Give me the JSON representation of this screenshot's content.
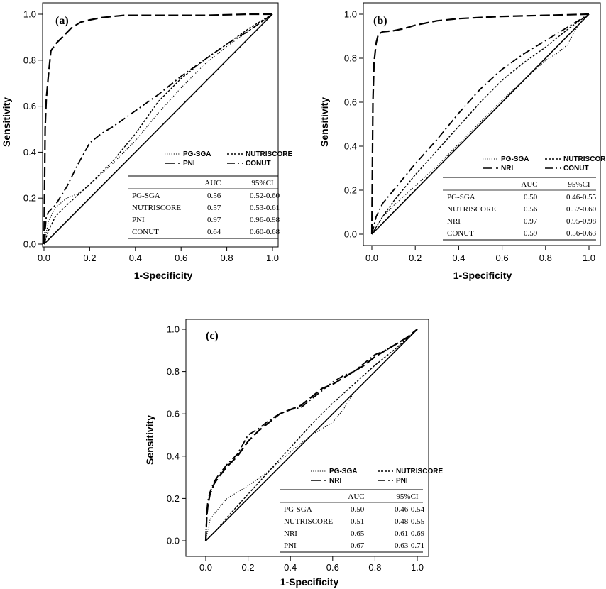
{
  "chart_data": [
    {
      "type": "line",
      "panel_label": "(a)",
      "xlabel": "1-Specificity",
      "ylabel": "Sensitivity",
      "xlim": [
        0,
        1
      ],
      "ylim": [
        0,
        1
      ],
      "xticks": [
        "0.0",
        "0.2",
        "0.4",
        "0.6",
        "0.8",
        "1.0"
      ],
      "yticks": [
        "0.0",
        "0.2",
        "0.4",
        "0.6",
        "0.8",
        "1.0"
      ],
      "grid": false,
      "legend_position": "lower-right",
      "series": [
        {
          "name": "PG-SGA",
          "style": "dotted",
          "x": [
            0,
            0.02,
            0.05,
            0.1,
            0.15,
            0.2,
            0.3,
            0.4,
            0.5,
            0.6,
            0.7,
            0.8,
            0.9,
            1.0
          ],
          "y": [
            0,
            0.1,
            0.16,
            0.2,
            0.22,
            0.26,
            0.35,
            0.45,
            0.57,
            0.68,
            0.78,
            0.86,
            0.93,
            1.0
          ]
        },
        {
          "name": "NUTRISCORE",
          "style": "short-dash",
          "x": [
            0,
            0.02,
            0.05,
            0.1,
            0.2,
            0.3,
            0.4,
            0.5,
            0.6,
            0.7,
            0.8,
            0.9,
            1.0
          ],
          "y": [
            0,
            0.06,
            0.12,
            0.17,
            0.26,
            0.36,
            0.48,
            0.62,
            0.72,
            0.8,
            0.87,
            0.94,
            1.0
          ]
        },
        {
          "name": "PNI",
          "style": "long-dash",
          "x": [
            0,
            0.005,
            0.01,
            0.02,
            0.03,
            0.05,
            0.08,
            0.12,
            0.16,
            0.2,
            0.25,
            0.3,
            0.35,
            0.5,
            0.7,
            0.9,
            1.0
          ],
          "y": [
            0,
            0.5,
            0.63,
            0.74,
            0.84,
            0.87,
            0.9,
            0.94,
            0.965,
            0.975,
            0.985,
            0.99,
            0.995,
            0.995,
            0.995,
            1.0,
            1.0
          ]
        },
        {
          "name": "CONUT",
          "style": "dash-dot",
          "x": [
            0,
            0.01,
            0.02,
            0.05,
            0.1,
            0.15,
            0.2,
            0.25,
            0.3,
            0.4,
            0.5,
            0.6,
            0.7,
            0.8,
            0.9,
            1.0
          ],
          "y": [
            0,
            0.12,
            0.14,
            0.17,
            0.25,
            0.35,
            0.44,
            0.48,
            0.51,
            0.58,
            0.65,
            0.73,
            0.8,
            0.87,
            0.93,
            1.0
          ]
        }
      ],
      "table": {
        "headers": [
          "",
          "AUC",
          "95%CI"
        ],
        "rows": [
          [
            "PG-SGA",
            "0.56",
            "0.52-0.60"
          ],
          [
            "NUTRISCORE",
            "0.57",
            "0.53-0.61"
          ],
          [
            "PNI",
            "0.97",
            "0.96-0.98"
          ],
          [
            "CONUT",
            "0.64",
            "0.60-0.68"
          ]
        ]
      }
    },
    {
      "type": "line",
      "panel_label": "(b)",
      "xlabel": "1-Specificity",
      "ylabel": "Sensitivity",
      "xlim": [
        0,
        1
      ],
      "ylim": [
        0,
        1
      ],
      "xticks": [
        "0.0",
        "0.2",
        "0.4",
        "0.6",
        "0.8",
        "1.0"
      ],
      "yticks": [
        "0.0",
        "0.2",
        "0.4",
        "0.6",
        "0.8",
        "1.0"
      ],
      "grid": false,
      "legend_position": "lower-right",
      "series": [
        {
          "name": "PG-SGA",
          "style": "dotted",
          "x": [
            0,
            0.05,
            0.1,
            0.2,
            0.3,
            0.4,
            0.5,
            0.6,
            0.7,
            0.8,
            0.85,
            0.9,
            0.95,
            1.0
          ],
          "y": [
            0,
            0.08,
            0.13,
            0.22,
            0.31,
            0.41,
            0.51,
            0.61,
            0.7,
            0.79,
            0.82,
            0.86,
            0.95,
            1.0
          ]
        },
        {
          "name": "NUTRISCORE",
          "style": "short-dash",
          "x": [
            0,
            0.05,
            0.1,
            0.2,
            0.3,
            0.4,
            0.5,
            0.6,
            0.7,
            0.8,
            0.9,
            1.0
          ],
          "y": [
            0,
            0.08,
            0.15,
            0.27,
            0.38,
            0.49,
            0.6,
            0.7,
            0.78,
            0.85,
            0.93,
            1.0
          ]
        },
        {
          "name": "NRI",
          "style": "long-dash",
          "x": [
            0,
            0.005,
            0.01,
            0.02,
            0.03,
            0.05,
            0.1,
            0.15,
            0.2,
            0.3,
            0.4,
            0.5,
            0.6,
            0.8,
            1.0
          ],
          "y": [
            0,
            0.6,
            0.78,
            0.87,
            0.91,
            0.92,
            0.925,
            0.935,
            0.95,
            0.97,
            0.98,
            0.985,
            0.99,
            0.995,
            1.0
          ]
        },
        {
          "name": "CONUT",
          "style": "dash-dot",
          "x": [
            0,
            0.02,
            0.05,
            0.1,
            0.2,
            0.3,
            0.4,
            0.5,
            0.6,
            0.7,
            0.8,
            0.9,
            1.0
          ],
          "y": [
            0,
            0.08,
            0.14,
            0.2,
            0.32,
            0.43,
            0.55,
            0.66,
            0.75,
            0.82,
            0.88,
            0.94,
            1.0
          ]
        }
      ],
      "table": {
        "headers": [
          "",
          "AUC",
          "95%CI"
        ],
        "rows": [
          [
            "PG-SGA",
            "0.50",
            "0.46-0.55"
          ],
          [
            "NUTRISCORE",
            "0.56",
            "0.52-0.60"
          ],
          [
            "NRI",
            "0.97",
            "0.95-0.98"
          ],
          [
            "CONUT",
            "0.59",
            "0.56-0.63"
          ]
        ]
      }
    },
    {
      "type": "line",
      "panel_label": "(c)",
      "xlabel": "1-Specificity",
      "ylabel": "Sensitivity",
      "xlim": [
        0,
        1
      ],
      "ylim": [
        0,
        1
      ],
      "xticks": [
        "0.0",
        "0.2",
        "0.4",
        "0.6",
        "0.8",
        "1.0"
      ],
      "yticks": [
        "0.0",
        "0.2",
        "0.4",
        "0.6",
        "0.8",
        "1.0"
      ],
      "grid": false,
      "legend_position": "lower-right",
      "series": [
        {
          "name": "PG-SGA",
          "style": "dotted",
          "x": [
            0,
            0.02,
            0.05,
            0.1,
            0.2,
            0.3,
            0.4,
            0.5,
            0.6,
            0.65,
            0.7,
            0.8,
            0.9,
            1.0
          ],
          "y": [
            0,
            0.1,
            0.14,
            0.2,
            0.26,
            0.33,
            0.42,
            0.5,
            0.56,
            0.62,
            0.7,
            0.8,
            0.9,
            1.0
          ]
        },
        {
          "name": "NUTRISCORE",
          "style": "short-dash",
          "x": [
            0,
            0.05,
            0.1,
            0.2,
            0.3,
            0.4,
            0.5,
            0.6,
            0.7,
            0.8,
            0.9,
            1.0
          ],
          "y": [
            0,
            0.05,
            0.11,
            0.22,
            0.33,
            0.44,
            0.55,
            0.65,
            0.74,
            0.83,
            0.91,
            1.0
          ]
        },
        {
          "name": "NRI",
          "style": "long-dash",
          "x": [
            0,
            0.005,
            0.01,
            0.02,
            0.04,
            0.06,
            0.1,
            0.15,
            0.2,
            0.25,
            0.3,
            0.35,
            0.4,
            0.45,
            0.5,
            0.55,
            0.6,
            0.65,
            0.7,
            0.75,
            0.8,
            0.85,
            0.9,
            0.95,
            1.0
          ],
          "y": [
            0,
            0.12,
            0.17,
            0.22,
            0.27,
            0.3,
            0.35,
            0.4,
            0.47,
            0.52,
            0.56,
            0.6,
            0.62,
            0.64,
            0.68,
            0.72,
            0.74,
            0.77,
            0.8,
            0.83,
            0.87,
            0.9,
            0.93,
            0.96,
            1.0
          ]
        },
        {
          "name": "PNI",
          "style": "dash-dot",
          "x": [
            0,
            0.005,
            0.01,
            0.02,
            0.04,
            0.06,
            0.1,
            0.15,
            0.2,
            0.25,
            0.3,
            0.35,
            0.4,
            0.45,
            0.5,
            0.55,
            0.6,
            0.65,
            0.7,
            0.75,
            0.8,
            0.85,
            0.9,
            0.95,
            1.0
          ],
          "y": [
            0,
            0.14,
            0.19,
            0.23,
            0.28,
            0.31,
            0.36,
            0.41,
            0.5,
            0.53,
            0.57,
            0.6,
            0.62,
            0.63,
            0.67,
            0.71,
            0.75,
            0.78,
            0.8,
            0.84,
            0.88,
            0.9,
            0.93,
            0.96,
            1.0
          ]
        }
      ],
      "table": {
        "headers": [
          "",
          "AUC",
          "95%CI"
        ],
        "rows": [
          [
            "PG-SGA",
            "0.50",
            "0.46-0.54"
          ],
          [
            "NUTRISCORE",
            "0.51",
            "0.48-0.55"
          ],
          [
            "NRI",
            "0.65",
            "0.61-0.69"
          ],
          [
            "PNI",
            "0.67",
            "0.63-0.71"
          ]
        ]
      }
    }
  ]
}
